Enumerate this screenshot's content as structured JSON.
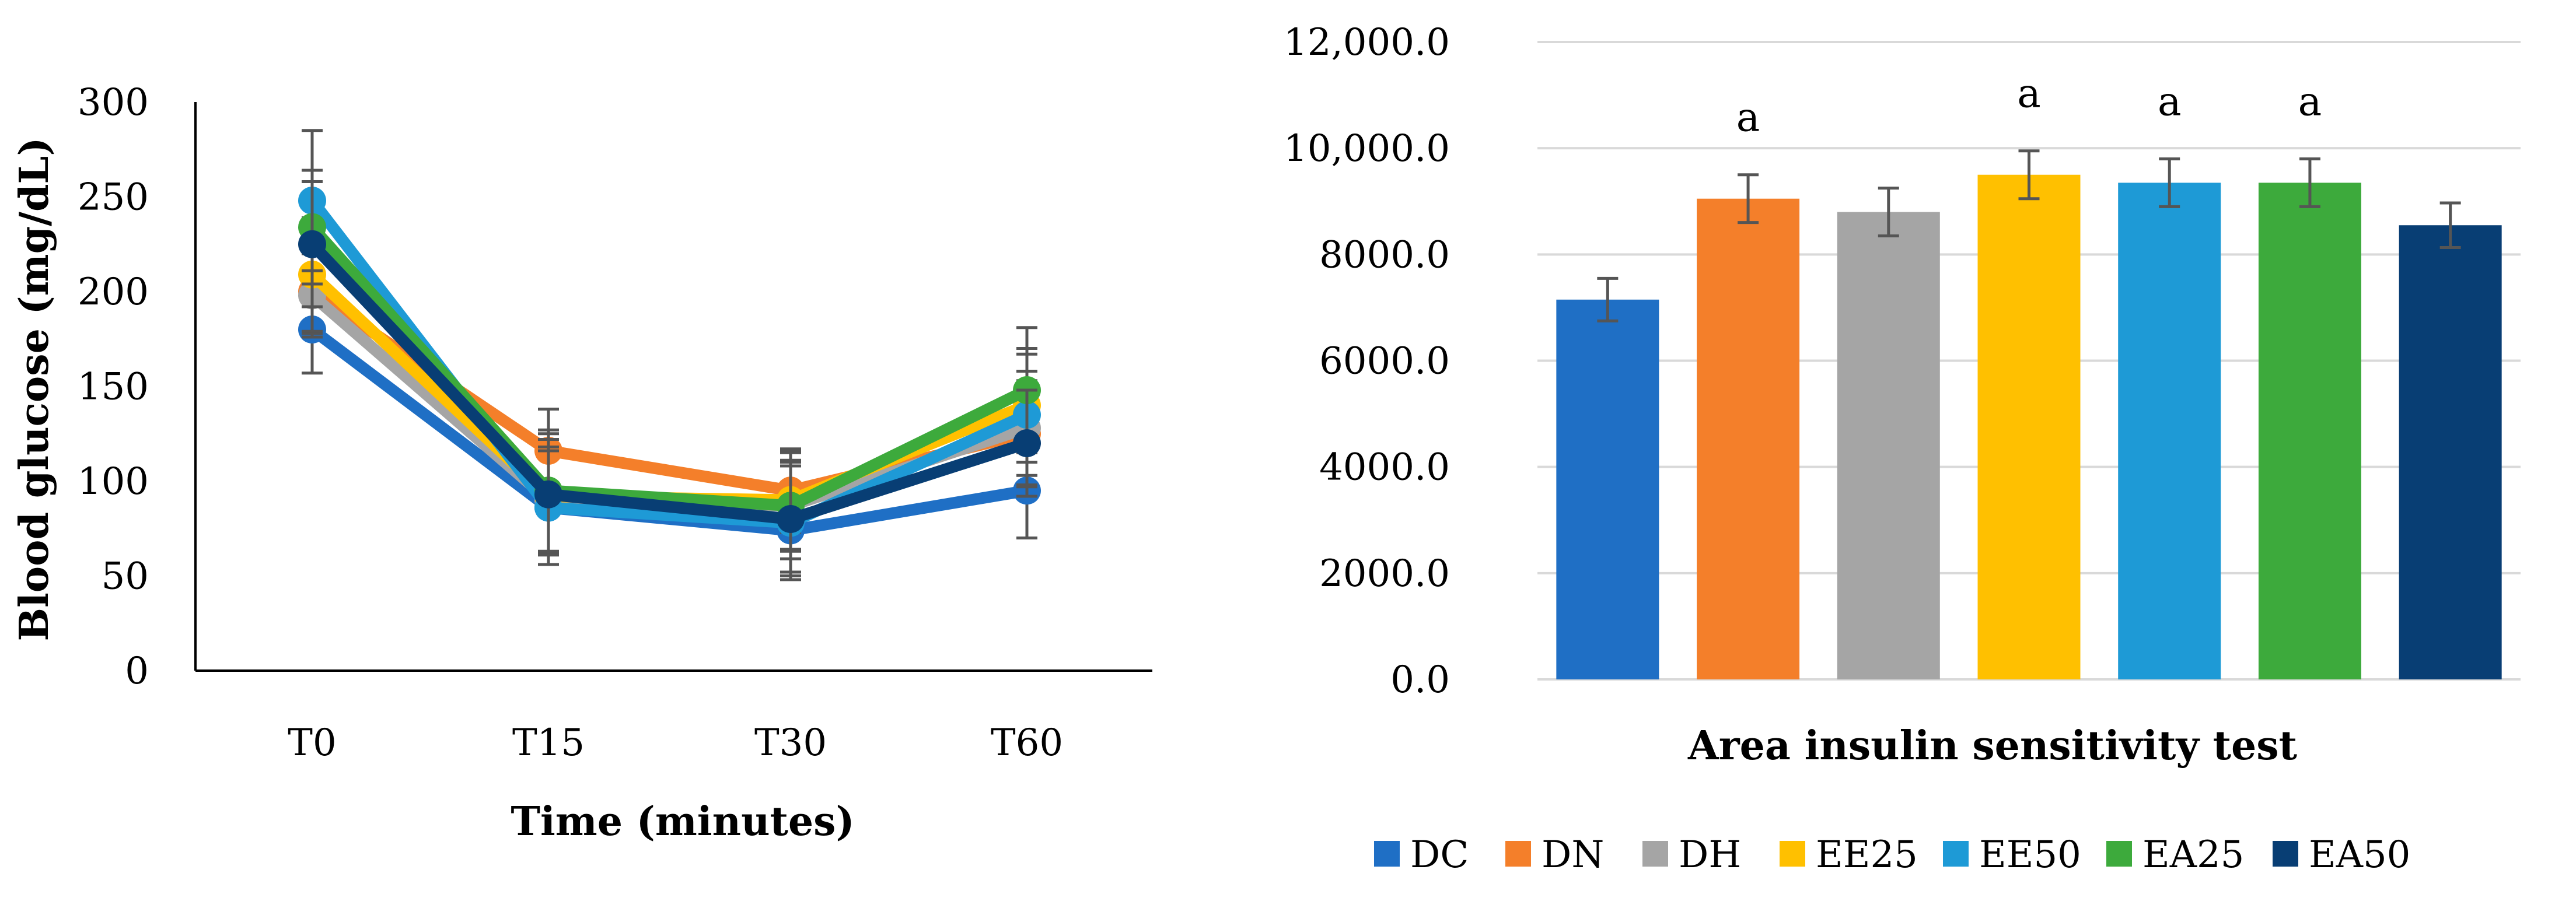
{
  "chart_data": [
    {
      "type": "line",
      "title": "",
      "xlabel": "Time (minutes)",
      "ylabel": "Blood glucose (mg/dL)",
      "x": [
        "T0",
        "T15",
        "T30",
        "T60"
      ],
      "ylim": [
        0,
        300
      ],
      "yticks": [
        "0",
        "50",
        "100",
        "150",
        "200",
        "250",
        "300"
      ],
      "grid": false,
      "series": [
        {
          "name": "DC",
          "color": "#1F6FC5",
          "values": [
            180,
            86,
            74,
            95
          ],
          "errors": [
            23,
            30,
            22,
            25
          ]
        },
        {
          "name": "DN",
          "color": "#F47F2A",
          "values": [
            200,
            116,
            95,
            125
          ],
          "errors": [
            22,
            22,
            22,
            28
          ]
        },
        {
          "name": "DH",
          "color": "#A5A5A5",
          "values": [
            198,
            90,
            87,
            128
          ],
          "errors": [
            22,
            28,
            24,
            30
          ]
        },
        {
          "name": "EE25",
          "color": "#FFC000",
          "values": [
            209,
            92,
            90,
            140
          ],
          "errors": [
            30,
            30,
            26,
            30
          ]
        },
        {
          "name": "EE50",
          "color": "#1E9AD6",
          "values": [
            248,
            86,
            78,
            135
          ],
          "errors": [
            37,
            30,
            30,
            32
          ]
        },
        {
          "name": "EA25",
          "color": "#3DAA3C",
          "values": [
            234,
            95,
            87,
            148
          ],
          "errors": [
            30,
            32,
            28,
            33
          ]
        },
        {
          "name": "EA50",
          "color": "#083E74",
          "values": [
            225,
            93,
            80,
            120
          ],
          "errors": [
            33,
            32,
            30,
            28
          ]
        }
      ]
    },
    {
      "type": "bar",
      "title": "",
      "xlabel": "Area insulin sensitivity test",
      "ylabel": "",
      "categories": [
        "DC",
        "DN",
        "DH",
        "EE25",
        "EE50",
        "EA25",
        "EA50"
      ],
      "colors": [
        "#1F6FC5",
        "#F47F2A",
        "#A5A5A5",
        "#FFC000",
        "#1E9AD6",
        "#3DAA3C",
        "#083E74"
      ],
      "values": [
        7150,
        9050,
        8800,
        9500,
        9350,
        9350,
        8550
      ],
      "errors": [
        400,
        450,
        450,
        450,
        450,
        450,
        420
      ],
      "significance": [
        "",
        "a",
        "",
        "a",
        "a",
        "a",
        ""
      ],
      "ylim": [
        0,
        12000
      ],
      "yticks": [
        "0.0",
        "2000.0",
        "4000.0",
        "6000.0",
        "8000.0",
        "10,000.0",
        "12,000.0"
      ],
      "grid": true,
      "legend_position": "bottom"
    }
  ]
}
